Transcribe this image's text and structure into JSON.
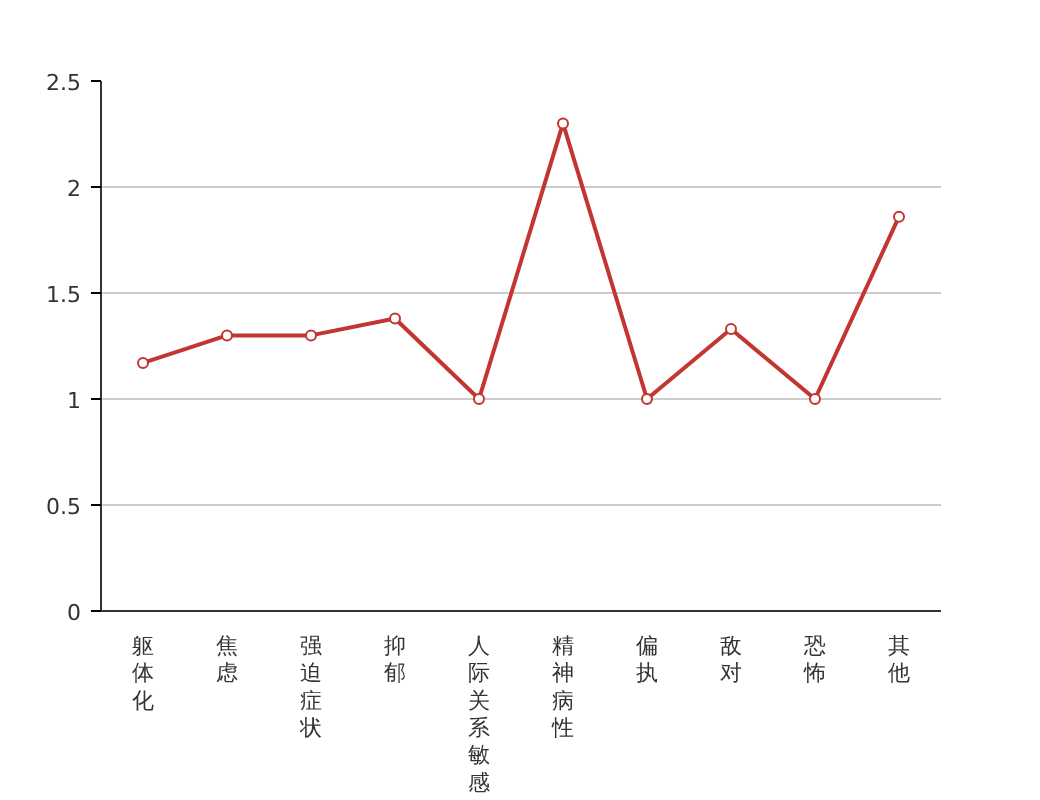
{
  "chart_data": {
    "type": "line",
    "categories": [
      "躯体化",
      "焦虑",
      "强迫症状",
      "抑郁",
      "人际关系敏感",
      "精神病性",
      "偏执",
      "敌对",
      "恐怖",
      "其他"
    ],
    "series": [
      {
        "color": "#c23531",
        "values": [
          1.17,
          1.3,
          1.3,
          1.38,
          1.0,
          2.3,
          1.0,
          1.33,
          1.0,
          1.86
        ]
      }
    ],
    "ylim": [
      0,
      2.5
    ],
    "yticks": [
      0,
      0.5,
      1,
      1.5,
      2,
      2.5
    ],
    "grid": "y",
    "marker": "circle",
    "line_style": "solid"
  }
}
